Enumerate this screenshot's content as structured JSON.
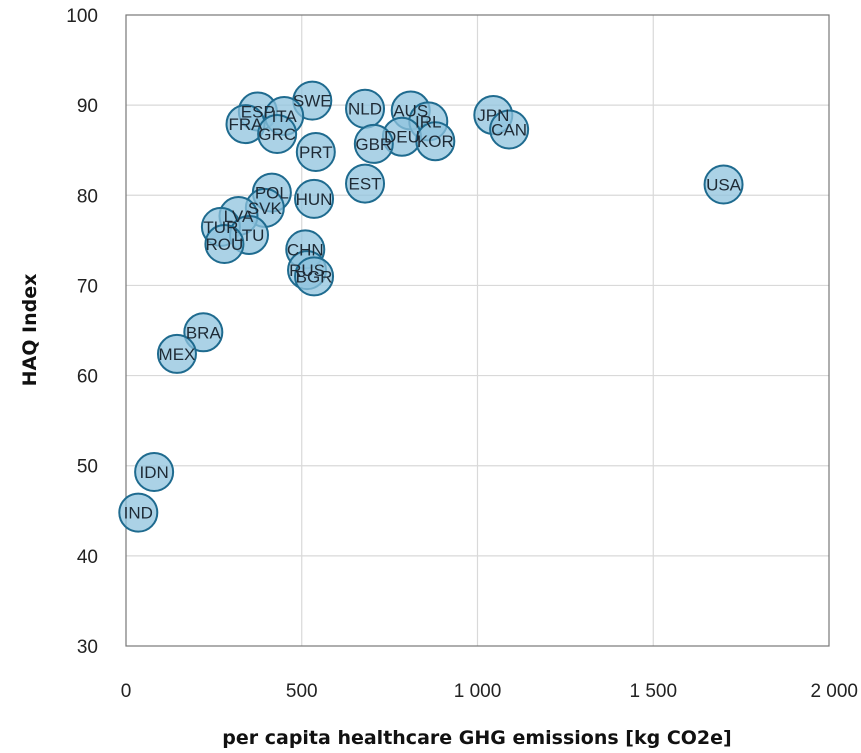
{
  "chart_data": {
    "type": "scatter",
    "title": "",
    "xlabel": "per capita healthcare GHG emissions [kg CO2e]",
    "ylabel": "HAQ Index",
    "xlim": [
      0,
      2000
    ],
    "ylim": [
      30,
      100
    ],
    "x_ticks": [
      0,
      500,
      1000,
      1500,
      2000
    ],
    "x_tick_labels": [
      "0",
      "500",
      "1 000",
      "1 500",
      "2 000"
    ],
    "y_ticks": [
      30,
      40,
      50,
      60,
      70,
      80,
      90,
      100
    ],
    "y_tick_labels": [
      "30",
      "40",
      "50",
      "60",
      "70",
      "80",
      "90",
      "100"
    ],
    "grid": true,
    "marker_fill": "#8fc3de",
    "marker_edge": "#1f6b8f",
    "points": [
      {
        "label": "USA",
        "x": 1700,
        "y": 81.2
      },
      {
        "label": "JPN",
        "x": 1045,
        "y": 88.9
      },
      {
        "label": "CAN",
        "x": 1090,
        "y": 87.3
      },
      {
        "label": "AUS",
        "x": 810,
        "y": 89.4
      },
      {
        "label": "IRL",
        "x": 860,
        "y": 88.2
      },
      {
        "label": "DEU",
        "x": 785,
        "y": 86.5
      },
      {
        "label": "KOR",
        "x": 880,
        "y": 86.0
      },
      {
        "label": "NLD",
        "x": 680,
        "y": 89.6
      },
      {
        "label": "GBR",
        "x": 705,
        "y": 85.7
      },
      {
        "label": "EST",
        "x": 680,
        "y": 81.3
      },
      {
        "label": "SWE",
        "x": 530,
        "y": 90.5
      },
      {
        "label": "ESP",
        "x": 375,
        "y": 89.3
      },
      {
        "label": "ITA",
        "x": 450,
        "y": 88.8
      },
      {
        "label": "FRA",
        "x": 340,
        "y": 87.9
      },
      {
        "label": "GRC",
        "x": 430,
        "y": 86.8
      },
      {
        "label": "PRT",
        "x": 540,
        "y": 84.8
      },
      {
        "label": "POL",
        "x": 415,
        "y": 80.3
      },
      {
        "label": "HUN",
        "x": 535,
        "y": 79.6
      },
      {
        "label": "SVK",
        "x": 395,
        "y": 78.6
      },
      {
        "label": "LVA",
        "x": 320,
        "y": 77.7
      },
      {
        "label": "TUR",
        "x": 270,
        "y": 76.5
      },
      {
        "label": "LTU",
        "x": 350,
        "y": 75.6
      },
      {
        "label": "ROU",
        "x": 280,
        "y": 74.6
      },
      {
        "label": "CHN",
        "x": 510,
        "y": 74.0
      },
      {
        "label": "RUS",
        "x": 515,
        "y": 71.7
      },
      {
        "label": "BGR",
        "x": 535,
        "y": 71.0
      },
      {
        "label": "BRA",
        "x": 220,
        "y": 64.8
      },
      {
        "label": "MEX",
        "x": 145,
        "y": 62.4
      },
      {
        "label": "IDN",
        "x": 80,
        "y": 49.3
      },
      {
        "label": "IND",
        "x": 35,
        "y": 44.8
      }
    ]
  }
}
